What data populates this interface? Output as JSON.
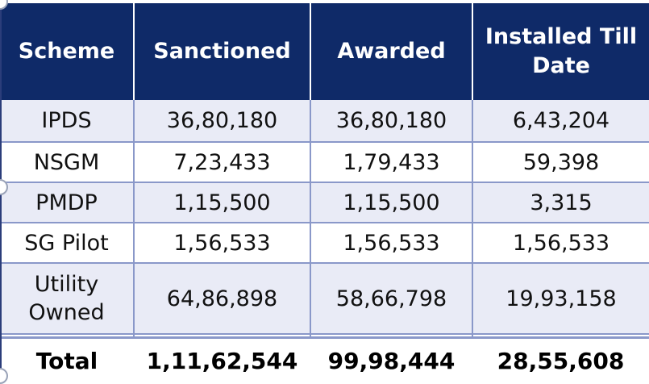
{
  "table": {
    "headers": [
      "Scheme",
      "Sanctioned",
      "Awarded",
      "Installed Till Date"
    ],
    "rows": [
      {
        "scheme": "IPDS",
        "sanctioned": "36,80,180",
        "awarded": "36,80,180",
        "installed": "6,43,204"
      },
      {
        "scheme": "NSGM",
        "sanctioned": "7,23,433",
        "awarded": "1,79,433",
        "installed": "59,398"
      },
      {
        "scheme": "PMDP",
        "sanctioned": "1,15,500",
        "awarded": "1,15,500",
        "installed": "3,315"
      },
      {
        "scheme": "SG Pilot",
        "sanctioned": "1,56,533",
        "awarded": "1,56,533",
        "installed": "1,56,533"
      },
      {
        "scheme_line1": "Utility",
        "scheme_line2": "Owned",
        "sanctioned": "64,86,898",
        "awarded": "58,66,798",
        "installed": "19,93,158"
      }
    ],
    "total": {
      "label": "Total",
      "sanctioned": "1,11,62,544",
      "awarded": "99,98,444",
      "installed": "28,55,608"
    }
  },
  "colors": {
    "header_bg": "#0f2a68",
    "band_bg": "#e9ebf6",
    "grid": "#8a98c9"
  }
}
